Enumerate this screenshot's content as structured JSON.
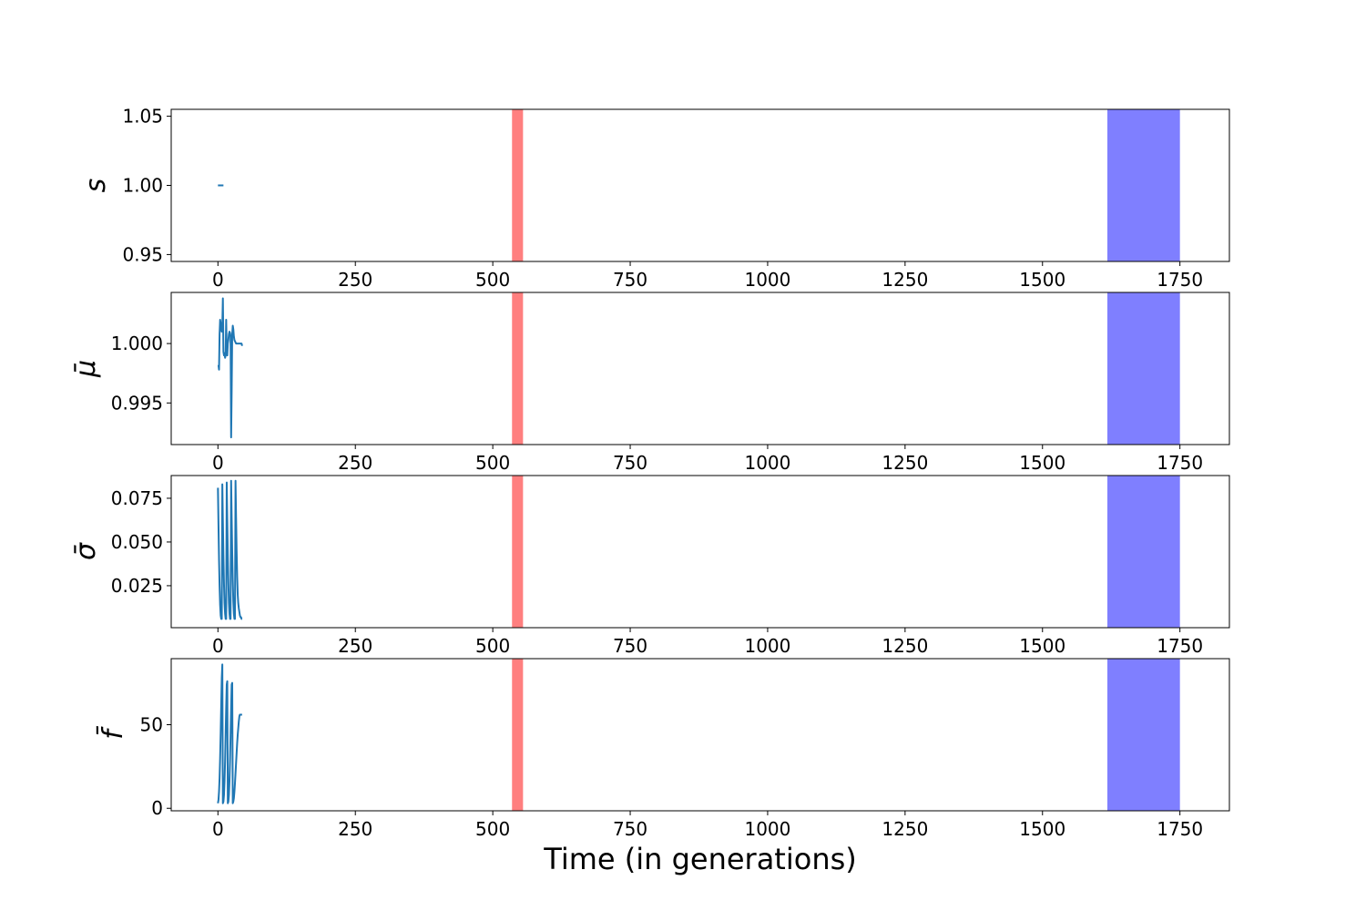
{
  "figure": {
    "xlabel": "Time (in generations)",
    "line_color": "#1f77b4",
    "red_band_color": "#ff7f7f",
    "blue_band_color": "#7f7fff"
  },
  "chart_data": [
    {
      "type": "line",
      "ylabel": "s",
      "xlim": [
        -85,
        1840
      ],
      "ylim": [
        0.945,
        1.055
      ],
      "xticks": [
        0,
        250,
        500,
        750,
        1000,
        1250,
        1500,
        1750
      ],
      "xtick_labels": [
        "0",
        "250",
        "500",
        "750",
        "1000",
        "1250",
        "1500",
        "1750"
      ],
      "yticks": [
        0.95,
        1.0,
        1.05
      ],
      "ytick_labels": [
        "0.95",
        "1.00",
        "1.05"
      ],
      "spans": [
        {
          "from": 535,
          "to": 555,
          "color": "#ff7f7f"
        },
        {
          "from": 1618,
          "to": 1750,
          "color": "#7f7fff"
        }
      ],
      "series": [
        {
          "x": [
            0,
            2,
            4,
            6,
            8,
            10
          ],
          "y": [
            1.0,
            1.0,
            1.0,
            1.0,
            1.0,
            1.0
          ]
        }
      ]
    },
    {
      "type": "line",
      "ylabel": "μ̄",
      "xlim": [
        -85,
        1840
      ],
      "ylim": [
        0.9915,
        1.0043
      ],
      "xticks": [
        0,
        250,
        500,
        750,
        1000,
        1250,
        1500,
        1750
      ],
      "xtick_labels": [
        "0",
        "250",
        "500",
        "750",
        "1000",
        "1250",
        "1500",
        "1750"
      ],
      "yticks": [
        0.995,
        1.0
      ],
      "ytick_labels": [
        "0.995",
        "1.000"
      ],
      "spans": [
        {
          "from": 535,
          "to": 555,
          "color": "#ff7f7f"
        },
        {
          "from": 1618,
          "to": 1750,
          "color": "#7f7fff"
        }
      ],
      "series": [
        {
          "x": [
            1,
            2,
            3,
            4,
            5,
            6,
            7,
            8,
            9,
            10,
            11,
            12,
            13,
            14,
            15,
            16,
            17,
            18,
            19,
            20,
            21,
            22,
            23,
            24,
            25,
            26,
            27,
            28,
            29,
            30,
            31,
            32,
            33,
            34,
            35,
            36,
            37,
            38,
            39,
            40,
            41,
            42,
            43,
            44
          ],
          "y": [
            0.9982,
            0.9978,
            1.0008,
            1.002,
            1.0017,
            1.0012,
            1.001,
            1.0015,
            1.0038,
            0.9993,
            0.999,
            0.9992,
            0.9988,
            0.999,
            1.002,
            0.9995,
            0.999,
            1.0,
            1.0003,
            1.0008,
            1.001,
            1.0009,
            1.0006,
            0.9921,
            0.996,
            1.0008,
            1.0015,
            1.0012,
            1.0006,
            1.0003,
            1.0002,
            1.0001,
            1.0,
            1.0,
            1.0,
            1.0,
            1.0,
            1.0,
            1.0,
            1.0,
            1.0,
            1.0,
            1.0,
            0.9998
          ]
        }
      ]
    },
    {
      "type": "line",
      "ylabel": "σ̄",
      "xlim": [
        -85,
        1840
      ],
      "ylim": [
        0.001,
        0.088
      ],
      "xticks": [
        0,
        250,
        500,
        750,
        1000,
        1250,
        1500,
        1750
      ],
      "xtick_labels": [
        "0",
        "250",
        "500",
        "750",
        "1000",
        "1250",
        "1500",
        "1750"
      ],
      "yticks": [
        0.025,
        0.05,
        0.075
      ],
      "ytick_labels": [
        "0.025",
        "0.050",
        "0.075"
      ],
      "spans": [
        {
          "from": 535,
          "to": 555,
          "color": "#ff7f7f"
        },
        {
          "from": 1618,
          "to": 1750,
          "color": "#7f7fff"
        }
      ],
      "series": [
        {
          "x": [
            0,
            1,
            2,
            3,
            4,
            5,
            6,
            7,
            8,
            9,
            10,
            11,
            12,
            13,
            14,
            15,
            16,
            17,
            18,
            19,
            20,
            21,
            22,
            23,
            24,
            25,
            26,
            27,
            28,
            29,
            30,
            31,
            32,
            33,
            34,
            35,
            36,
            37,
            38,
            39,
            40,
            41,
            42,
            43,
            44
          ],
          "y": [
            0.081,
            0.06,
            0.04,
            0.025,
            0.014,
            0.008,
            0.006,
            0.006,
            0.083,
            0.062,
            0.042,
            0.026,
            0.015,
            0.009,
            0.006,
            0.006,
            0.084,
            0.063,
            0.043,
            0.027,
            0.015,
            0.009,
            0.006,
            0.006,
            0.085,
            0.064,
            0.044,
            0.028,
            0.016,
            0.009,
            0.006,
            0.006,
            0.085,
            0.064,
            0.045,
            0.03,
            0.02,
            0.015,
            0.012,
            0.01,
            0.008,
            0.007,
            0.007,
            0.006,
            0.006
          ]
        }
      ]
    },
    {
      "type": "line",
      "ylabel": "f̄",
      "xlim": [
        -85,
        1840
      ],
      "ylim": [
        -1.5,
        89.5
      ],
      "xticks": [
        0,
        250,
        500,
        750,
        1000,
        1250,
        1500,
        1750
      ],
      "xtick_labels": [
        "0",
        "250",
        "500",
        "750",
        "1000",
        "1250",
        "1500",
        "1750"
      ],
      "yticks": [
        0,
        50
      ],
      "ytick_labels": [
        "0",
        "50"
      ],
      "spans": [
        {
          "from": 535,
          "to": 555,
          "color": "#ff7f7f"
        },
        {
          "from": 1618,
          "to": 1750,
          "color": "#7f7fff"
        }
      ],
      "series": [
        {
          "x": [
            0,
            1,
            2,
            3,
            4,
            5,
            6,
            7,
            8,
            9,
            10,
            11,
            12,
            13,
            14,
            15,
            16,
            17,
            18,
            19,
            20,
            21,
            22,
            23,
            24,
            25,
            26,
            27,
            28,
            29,
            30,
            31,
            32,
            33,
            34,
            35,
            36,
            37,
            38,
            39,
            40,
            41,
            42,
            43,
            44
          ],
          "y": [
            3,
            5,
            10,
            18,
            30,
            45,
            62,
            78,
            86,
            3,
            4,
            8,
            16,
            28,
            44,
            60,
            74,
            76,
            3,
            4,
            8,
            16,
            28,
            44,
            60,
            74,
            75,
            3,
            4,
            6,
            10,
            15,
            21,
            27,
            33,
            39,
            44,
            48,
            52,
            55,
            56,
            56,
            56,
            56,
            56
          ]
        }
      ]
    }
  ]
}
